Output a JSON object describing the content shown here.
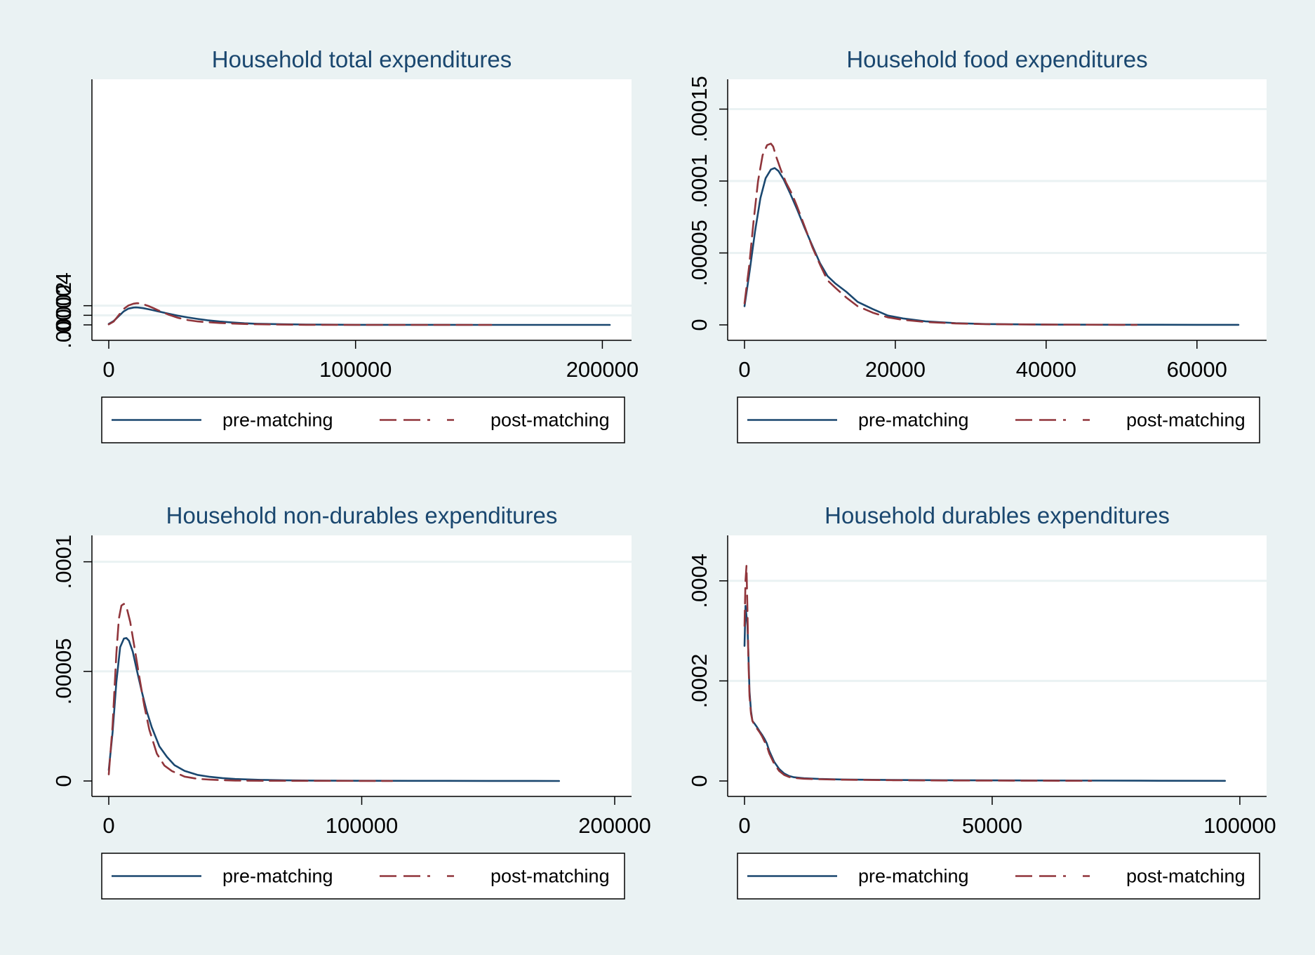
{
  "colors": {
    "background": "#eaf2f3",
    "plot_region": "#ffffff",
    "title": "#1a476f",
    "pre_matching": "#1a476f",
    "post_matching": "#90353b",
    "grid": "#eaf2f3"
  },
  "chart_data": [
    {
      "type": "line",
      "title": "Household total expenditures",
      "xlabel": "",
      "ylabel": "",
      "xlim": [
        0,
        205000
      ],
      "ylim": [
        0,
        0.00048
      ],
      "xticks": [
        "0",
        "100000",
        "200000"
      ],
      "xtick_values": [
        0,
        100000,
        200000
      ],
      "yticks": [
        "0",
        ".00002",
        ".00004"
      ],
      "ytick_values": [
        0,
        2e-05,
        4e-05
      ],
      "grid": true,
      "legend": "bottom",
      "series": [
        {
          "name": "pre-matching",
          "style": "solid",
          "x": [
            0,
            2000,
            4000,
            6000,
            8000,
            10000,
            11000,
            12000,
            14000,
            16000,
            18000,
            20000,
            24000,
            28000,
            32000,
            36000,
            40000,
            45000,
            50000,
            55000,
            60000,
            70000,
            80000,
            90000,
            100000,
            120000,
            150000,
            180000,
            203000
          ],
          "y": [
            2.1e-06,
            8e-06,
            1.8e-05,
            2.8e-05,
            3.4e-05,
            3.62e-05,
            3.65e-05,
            3.62e-05,
            3.48e-05,
            3.28e-05,
            3.06e-05,
            2.83e-05,
            2.36e-05,
            1.92e-05,
            1.55e-05,
            1.24e-05,
            9.7e-06,
            7e-06,
            5e-06,
            3.4e-06,
            2.4e-06,
            1.3e-06,
            7e-07,
            4e-07,
            2e-07,
            1e-07,
            5e-08,
            2e-08,
            1e-08
          ]
        },
        {
          "name": "post-matching",
          "style": "dashed",
          "x": [
            0,
            2000,
            4000,
            6000,
            8000,
            10000,
            11500,
            12500,
            14000,
            16000,
            18000,
            20000,
            24000,
            28000,
            32000,
            36000,
            40000,
            45000,
            50000,
            55000,
            60000,
            70000,
            80000,
            90000,
            100000,
            120000,
            150000,
            155000
          ],
          "y": [
            1e-06,
            7e-06,
            2e-05,
            3.3e-05,
            4.05e-05,
            4.42e-05,
            4.52e-05,
            4.5e-05,
            4.3e-05,
            3.95e-05,
            3.53e-05,
            3.05e-05,
            2.18e-05,
            1.48e-05,
            1.01e-05,
            7.2e-06,
            5.5e-06,
            4e-06,
            2.8e-06,
            1.9e-06,
            1.3e-06,
            6e-07,
            2e-07,
            1e-07,
            5e-08,
            2e-08,
            1e-08,
            0
          ]
        }
      ]
    },
    {
      "type": "line",
      "title": "Household food expenditures",
      "xlabel": "",
      "ylabel": "",
      "xlim": [
        0,
        67000
      ],
      "ylim": [
        0,
        0.00016
      ],
      "xticks": [
        "0",
        "20000",
        "40000",
        "60000"
      ],
      "xtick_values": [
        0,
        20000,
        40000,
        60000
      ],
      "yticks": [
        "0",
        ".00005",
        ".0001",
        ".00015"
      ],
      "ytick_values": [
        0,
        5e-05,
        0.0001,
        0.00015
      ],
      "grid": true,
      "legend": "bottom",
      "series": [
        {
          "name": "pre-matching",
          "style": "solid",
          "x": [
            0,
            700,
            1400,
            2100,
            2800,
            3500,
            4000,
            4500,
            5200,
            6000,
            7000,
            8000,
            9000,
            10000,
            11000,
            12000,
            13500,
            15000,
            17000,
            19000,
            21000,
            24000,
            28000,
            32000,
            40000,
            50000,
            60000,
            65500
          ],
          "y": [
            1.3e-05,
            3.8e-05,
            6.5e-05,
            8.8e-05,
            0.000102,
            0.000108,
            0.000109,
            0.000107,
            0.000101,
            9.2e-05,
            8e-05,
            6.7e-05,
            5.5e-05,
            4.3e-05,
            3.4e-05,
            2.9e-05,
            2.3e-05,
            1.6e-05,
            1.1e-05,
            6.5e-06,
            4.5e-06,
            2.5e-06,
            1.2e-06,
            6e-07,
            2e-07,
            1e-07,
            5e-08,
            3e-08
          ]
        },
        {
          "name": "post-matching",
          "style": "dashed",
          "x": [
            0,
            600,
            1200,
            1800,
            2400,
            3000,
            3500,
            3800,
            4200,
            4800,
            5500,
            6300,
            7000,
            8000,
            9000,
            10000,
            11000,
            12000,
            13500,
            15000,
            17000,
            19000,
            21000,
            24000,
            28000,
            32000,
            40000,
            50000,
            52000
          ],
          "y": [
            1.5e-05,
            4e-05,
            7.2e-05,
            0.0001,
            0.000118,
            0.000125,
            0.000126,
            0.000124,
            0.000117,
            0.000108,
            9.9e-05,
            9.1e-05,
            8.2e-05,
            6.8e-05,
            5.4e-05,
            4.2e-05,
            3.1e-05,
            2.6e-05,
            1.9e-05,
            1.3e-05,
            8.5e-06,
            5.2e-06,
            3.5e-06,
            2e-06,
            1e-06,
            5e-07,
            2e-07,
            5e-08,
            0
          ]
        }
      ]
    },
    {
      "type": "line",
      "title": "Household non-durables expenditures",
      "xlabel": "",
      "ylabel": "",
      "xlim": [
        0,
        200000
      ],
      "ylim": [
        0,
        0.000105
      ],
      "xticks": [
        "0",
        "100000",
        "200000"
      ],
      "xtick_values": [
        0,
        100000,
        200000
      ],
      "yticks": [
        "0",
        ".00005",
        ".0001"
      ],
      "ytick_values": [
        0,
        5e-05,
        0.0001
      ],
      "grid": true,
      "legend": "bottom",
      "series": [
        {
          "name": "pre-matching",
          "style": "solid",
          "x": [
            0,
            1500,
            3000,
            4500,
            6000,
            7000,
            8000,
            9500,
            11000,
            13000,
            15000,
            17000,
            20000,
            23000,
            26000,
            30000,
            35000,
            40000,
            45000,
            50000,
            60000,
            70000,
            80000,
            100000,
            120000,
            150000,
            178000
          ],
          "y": [
            5e-06,
            2.2e-05,
            4.5e-05,
            6.1e-05,
            6.5e-05,
            6.52e-05,
            6.4e-05,
            5.9e-05,
            5.1e-05,
            4.1e-05,
            3.18e-05,
            2.45e-05,
            1.58e-05,
            1.1e-05,
            7.2e-06,
            4.6e-06,
            2.8e-06,
            1.9e-06,
            1.3e-06,
            9e-07,
            5e-07,
            3e-07,
            2e-07,
            1e-07,
            5e-08,
            2e-08,
            1e-08
          ]
        },
        {
          "name": "post-matching",
          "style": "dashed",
          "x": [
            0,
            1500,
            3000,
            4000,
            5000,
            6000,
            7000,
            8500,
            10000,
            12000,
            14000,
            16000,
            19000,
            22000,
            25000,
            30000,
            35000,
            40000,
            45000,
            50000,
            60000,
            80000,
            100000,
            112000
          ],
          "y": [
            3e-06,
            2.5e-05,
            5.8e-05,
            7.4e-05,
            8e-05,
            8.08e-05,
            7.95e-05,
            7.25e-05,
            6.2e-05,
            4.8e-05,
            3.45e-05,
            2.35e-05,
            1.25e-05,
            7e-06,
            4.5e-06,
            2e-06,
            1e-06,
            6e-07,
            4e-07,
            2e-07,
            1e-07,
            5e-08,
            2e-08,
            0
          ]
        }
      ]
    },
    {
      "type": "line",
      "title": "Household durables expenditures",
      "xlabel": "",
      "ylabel": "",
      "xlim": [
        0,
        102000
      ],
      "ylim": [
        0,
        0.00046
      ],
      "xticks": [
        "0",
        "50000",
        "100000"
      ],
      "xtick_values": [
        0,
        50000,
        100000
      ],
      "yticks": [
        "0",
        ".0002",
        ".0004"
      ],
      "ytick_values": [
        0,
        0.0002,
        0.0004
      ],
      "grid": true,
      "legend": "bottom",
      "series": [
        {
          "name": "pre-matching",
          "style": "solid",
          "x": [
            0,
            200,
            400,
            600,
            800,
            1000,
            1300,
            1600,
            2000,
            2500,
            3000,
            3500,
            4000,
            4500,
            5000,
            6000,
            7000,
            8000,
            9000,
            10000,
            12000,
            15000,
            20000,
            30000,
            40000,
            60000,
            80000,
            97000
          ],
          "y": [
            0.00027,
            0.00035,
            0.00033,
            0.00031,
            0.00025,
            0.00018,
            0.00014,
            0.00012,
            0.000115,
            0.000108,
            0.0001,
            9.3e-05,
            8.5e-05,
            7.5e-05,
            6e-05,
            3.8e-05,
            2.4e-05,
            1.5e-05,
            1e-05,
            7.5e-06,
            5.5e-06,
            4e-06,
            3e-06,
            2e-06,
            1.5e-06,
            1e-06,
            5e-07,
            3e-07
          ]
        },
        {
          "name": "post-matching",
          "style": "dashed",
          "x": [
            0,
            200,
            400,
            600,
            800,
            1000,
            1300,
            1600,
            2000,
            2500,
            3000,
            3500,
            4000,
            4500,
            5000,
            6000,
            7000,
            8000,
            9000,
            10000,
            12000,
            15000,
            20000,
            30000,
            40000,
            60000,
            70000
          ],
          "y": [
            0.00031,
            0.0004,
            0.00043,
            0.00034,
            0.00024,
            0.00017,
            0.000135,
            0.00012,
            0.000112,
            0.000105,
            9.8e-05,
            9e-05,
            8e-05,
            7e-05,
            5.5e-05,
            3.4e-05,
            2e-05,
            1.2e-05,
            8e-06,
            6e-06,
            4.5e-06,
            3.5e-06,
            2.5e-06,
            1.5e-06,
            1e-06,
            5e-07,
            3e-07
          ]
        }
      ]
    }
  ]
}
